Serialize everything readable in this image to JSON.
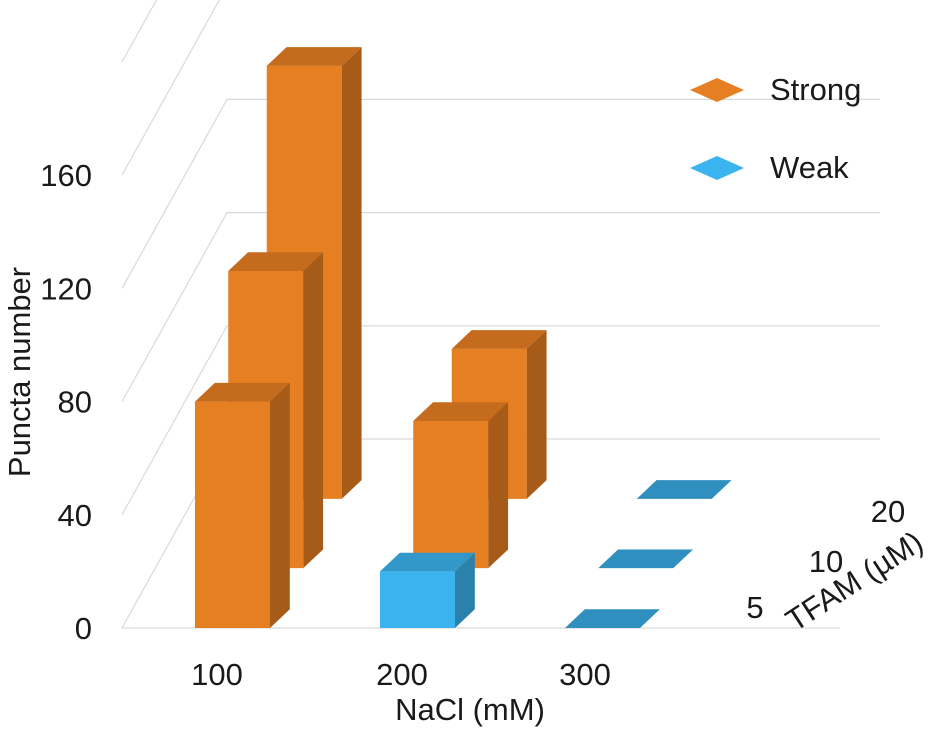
{
  "chart_data": {
    "type": "bar",
    "three_d": true,
    "x_categories": [
      "100",
      "200",
      "300"
    ],
    "depth_categories": [
      "5",
      "10",
      "20"
    ],
    "xlabel": "NaCl (mM)",
    "ylabel": "Puncta number",
    "depth_label": "TFAM (µM)",
    "y_ticks": [
      "0",
      "40",
      "80",
      "120",
      "160"
    ],
    "ylim": [
      0,
      200
    ],
    "grid": true,
    "legend_position": "top-right",
    "series": [
      {
        "name": "Strong",
        "color": "#E67E22",
        "values": [
          {
            "x": "100",
            "depth": "5",
            "y": 80
          },
          {
            "x": "100",
            "depth": "10",
            "y": 105
          },
          {
            "x": "100",
            "depth": "20",
            "y": 153
          },
          {
            "x": "200",
            "depth": "10",
            "y": 52
          },
          {
            "x": "200",
            "depth": "20",
            "y": 53
          }
        ]
      },
      {
        "name": "Weak",
        "color": "#3BB3EE",
        "values": [
          {
            "x": "200",
            "depth": "5",
            "y": 20
          },
          {
            "x": "300",
            "depth": "5",
            "y": 0
          },
          {
            "x": "300",
            "depth": "10",
            "y": 0
          },
          {
            "x": "300",
            "depth": "20",
            "y": 0
          }
        ]
      }
    ]
  }
}
